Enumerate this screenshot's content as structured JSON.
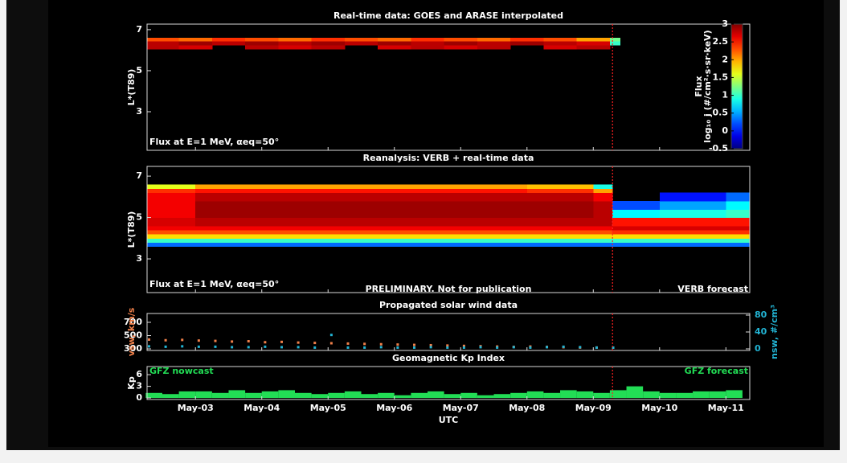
{
  "forecast_start": 9.29,
  "chart_data": [
    {
      "type": "heatmap",
      "title": "Real-time data: GOES and ARASE interpolated",
      "y_label": "L*(T89)",
      "annotation_left": "Flux at E=1 MeV, αeq=50°",
      "xlim": [
        2.27,
        11.36
      ],
      "ylim": [
        1.12,
        7.27
      ],
      "yticks": [
        3,
        5,
        7
      ],
      "x_edges": [
        2.27,
        2.75,
        3.25,
        3.75,
        4.25,
        4.75,
        5.25,
        5.75,
        6.25,
        6.75,
        7.25,
        7.75,
        8.25,
        8.75,
        9.25,
        9.4
      ],
      "y_edges": [
        6.05,
        6.25,
        6.45,
        6.6
      ],
      "z": [
        [
          2.8,
          2.7,
          null,
          2.8,
          2.7,
          2.8,
          null,
          2.7,
          2.8,
          2.7,
          2.8,
          null,
          2.7,
          2.8,
          null
        ],
        [
          2.8,
          2.9,
          2.8,
          2.9,
          2.8,
          2.9,
          2.8,
          2.9,
          2.8,
          2.9,
          2.8,
          2.9,
          2.8,
          2.7,
          1.0
        ],
        [
          2.3,
          2.2,
          2.4,
          2.3,
          2.2,
          2.4,
          2.3,
          2.2,
          2.4,
          2.3,
          2.2,
          2.4,
          2.3,
          2.0,
          1.2
        ]
      ],
      "colorbar": {
        "title": "Flux",
        "label": "log₁₀ j (#/cm²·s·sr·keV)",
        "clim": [
          -0.5,
          3
        ],
        "ticks": [
          -0.5,
          0,
          0.5,
          1,
          1.5,
          2,
          2.5,
          3
        ]
      }
    },
    {
      "type": "heatmap",
      "title": "Reanalysis: VERB + real-time data",
      "y_label": "L*(T89)",
      "annotation_left": "Flux at E=1 MeV, αeq=50°",
      "annotation_center": "PRELIMINARY. Not for publication",
      "annotation_right": "VERB forecast",
      "xlim": [
        2.27,
        11.36
      ],
      "ylim": [
        1.37,
        7.47
      ],
      "yticks": [
        3,
        5,
        7
      ],
      "x_edges": [
        2.27,
        3,
        4,
        5,
        6,
        7,
        8,
        9,
        9.29,
        10,
        11,
        11.36
      ],
      "y_edges": [
        3.6,
        3.8,
        4.0,
        4.2,
        4.4,
        4.6,
        5.0,
        5.4,
        5.8,
        6.2,
        6.4,
        6.6
      ],
      "z": [
        [
          0.3,
          0.3,
          0.3,
          0.3,
          0.3,
          0.3,
          0.3,
          0.3,
          0.3,
          0.3,
          0.3
        ],
        [
          1.0,
          1.0,
          1.0,
          1.0,
          1.0,
          1.0,
          1.0,
          1.0,
          1.0,
          1.0,
          1.0
        ],
        [
          1.8,
          1.8,
          1.8,
          1.8,
          1.8,
          1.8,
          1.8,
          1.8,
          1.8,
          1.8,
          1.8
        ],
        [
          2.3,
          2.3,
          2.3,
          2.3,
          2.3,
          2.3,
          2.3,
          2.3,
          2.4,
          2.4,
          2.4
        ],
        [
          2.6,
          2.6,
          2.6,
          2.6,
          2.6,
          2.6,
          2.6,
          2.6,
          2.7,
          2.7,
          2.7
        ],
        [
          2.7,
          2.8,
          2.8,
          2.8,
          2.8,
          2.8,
          2.8,
          2.8,
          2.5,
          2.5,
          2.5
        ],
        [
          2.6,
          2.9,
          2.9,
          2.9,
          2.9,
          2.9,
          2.9,
          2.8,
          0.8,
          0.9,
          1.0
        ],
        [
          2.6,
          2.9,
          2.9,
          2.9,
          2.9,
          2.9,
          2.9,
          2.8,
          0.2,
          0.5,
          0.8
        ],
        [
          2.6,
          2.8,
          2.8,
          2.8,
          2.8,
          2.8,
          2.8,
          2.6,
          null,
          0.0,
          0.3
        ],
        [
          2.4,
          2.5,
          2.5,
          2.5,
          2.5,
          2.5,
          2.4,
          2.0,
          null,
          null,
          null
        ],
        [
          1.6,
          2.0,
          2.0,
          2.0,
          2.0,
          2.0,
          1.9,
          0.9,
          null,
          null,
          null
        ]
      ]
    },
    {
      "type": "scatter",
      "title": "Propagated solar wind data",
      "xlim": [
        2.27,
        11.36
      ],
      "ylim": [
        276,
        833
      ],
      "yticks": [
        300,
        500,
        700
      ],
      "y2lim": [
        -3.8,
        83.8
      ],
      "y2ticks": [
        0,
        40,
        80
      ],
      "y_label": "vsw, km/s",
      "y2_label": "nsw, #/cm³",
      "x": [
        2.3,
        2.55,
        2.8,
        3.05,
        3.3,
        3.55,
        3.8,
        4.05,
        4.3,
        4.55,
        4.8,
        5.05,
        5.3,
        5.55,
        5.8,
        6.05,
        6.3,
        6.55,
        6.8,
        7.05,
        7.3,
        7.55,
        7.8,
        8.05,
        8.3,
        8.55,
        8.8,
        9.05,
        9.3
      ],
      "series": [
        {
          "name": "vsw",
          "color": "#f0804a",
          "values": [
            440,
            430,
            435,
            425,
            420,
            410,
            415,
            400,
            405,
            395,
            390,
            385,
            380,
            375,
            370,
            365,
            360,
            355,
            350,
            345,
            340,
            335,
            330,
            335,
            330,
            325,
            320,
            320,
            318
          ]
        },
        {
          "name": "nsw",
          "color": "#22b4d4",
          "axis": "y2",
          "values": [
            6,
            5,
            6,
            5,
            5,
            4,
            4,
            5,
            4,
            4,
            3,
            33,
            3,
            3,
            4,
            3,
            3,
            4,
            3,
            3,
            4,
            3,
            4,
            3,
            4,
            5,
            4,
            3,
            3
          ]
        }
      ]
    },
    {
      "type": "histogram",
      "title": "Geomagnetic Kp Index",
      "y_label": "Kp",
      "x_label": "UTC",
      "annotation_left": "GFZ nowcast",
      "annotation_right": "GFZ forecast",
      "color": "#22dd55",
      "xlim": [
        2.27,
        11.36
      ],
      "ylim": [
        -0.4,
        8.1
      ],
      "yticks": [
        0,
        3,
        6
      ],
      "xticks": [
        {
          "value": 3,
          "label": "May-03"
        },
        {
          "value": 4,
          "label": "May-04"
        },
        {
          "value": 5,
          "label": "May-05"
        },
        {
          "value": 6,
          "label": "May-06"
        },
        {
          "value": 7,
          "label": "May-07"
        },
        {
          "value": 8,
          "label": "May-08"
        },
        {
          "value": 9,
          "label": "May-09"
        },
        {
          "value": 10,
          "label": "May-10"
        },
        {
          "value": 11,
          "label": "May-11"
        }
      ],
      "bins": [
        2.25,
        2.5,
        2.75,
        3,
        3.25,
        3.5,
        3.75,
        4,
        4.25,
        4.5,
        4.75,
        5,
        5.25,
        5.5,
        5.75,
        6,
        6.25,
        6.5,
        6.75,
        7,
        7.25,
        7.5,
        7.75,
        8,
        8.25,
        8.5,
        8.75,
        9,
        9.25,
        9.5,
        9.75,
        10,
        10.25,
        10.5,
        10.75,
        11,
        11.25
      ],
      "values": [
        1.3,
        1.0,
        1.7,
        1.7,
        1.3,
        2.0,
        1.3,
        1.7,
        2.0,
        1.3,
        1.0,
        1.3,
        1.7,
        1.0,
        1.3,
        0.7,
        1.3,
        1.7,
        1.0,
        1.3,
        0.7,
        1.0,
        1.3,
        1.7,
        1.3,
        2.0,
        1.7,
        1.3,
        2.0,
        3.0,
        1.7,
        1.3,
        1.3,
        1.7,
        1.7,
        2.0
      ]
    }
  ]
}
